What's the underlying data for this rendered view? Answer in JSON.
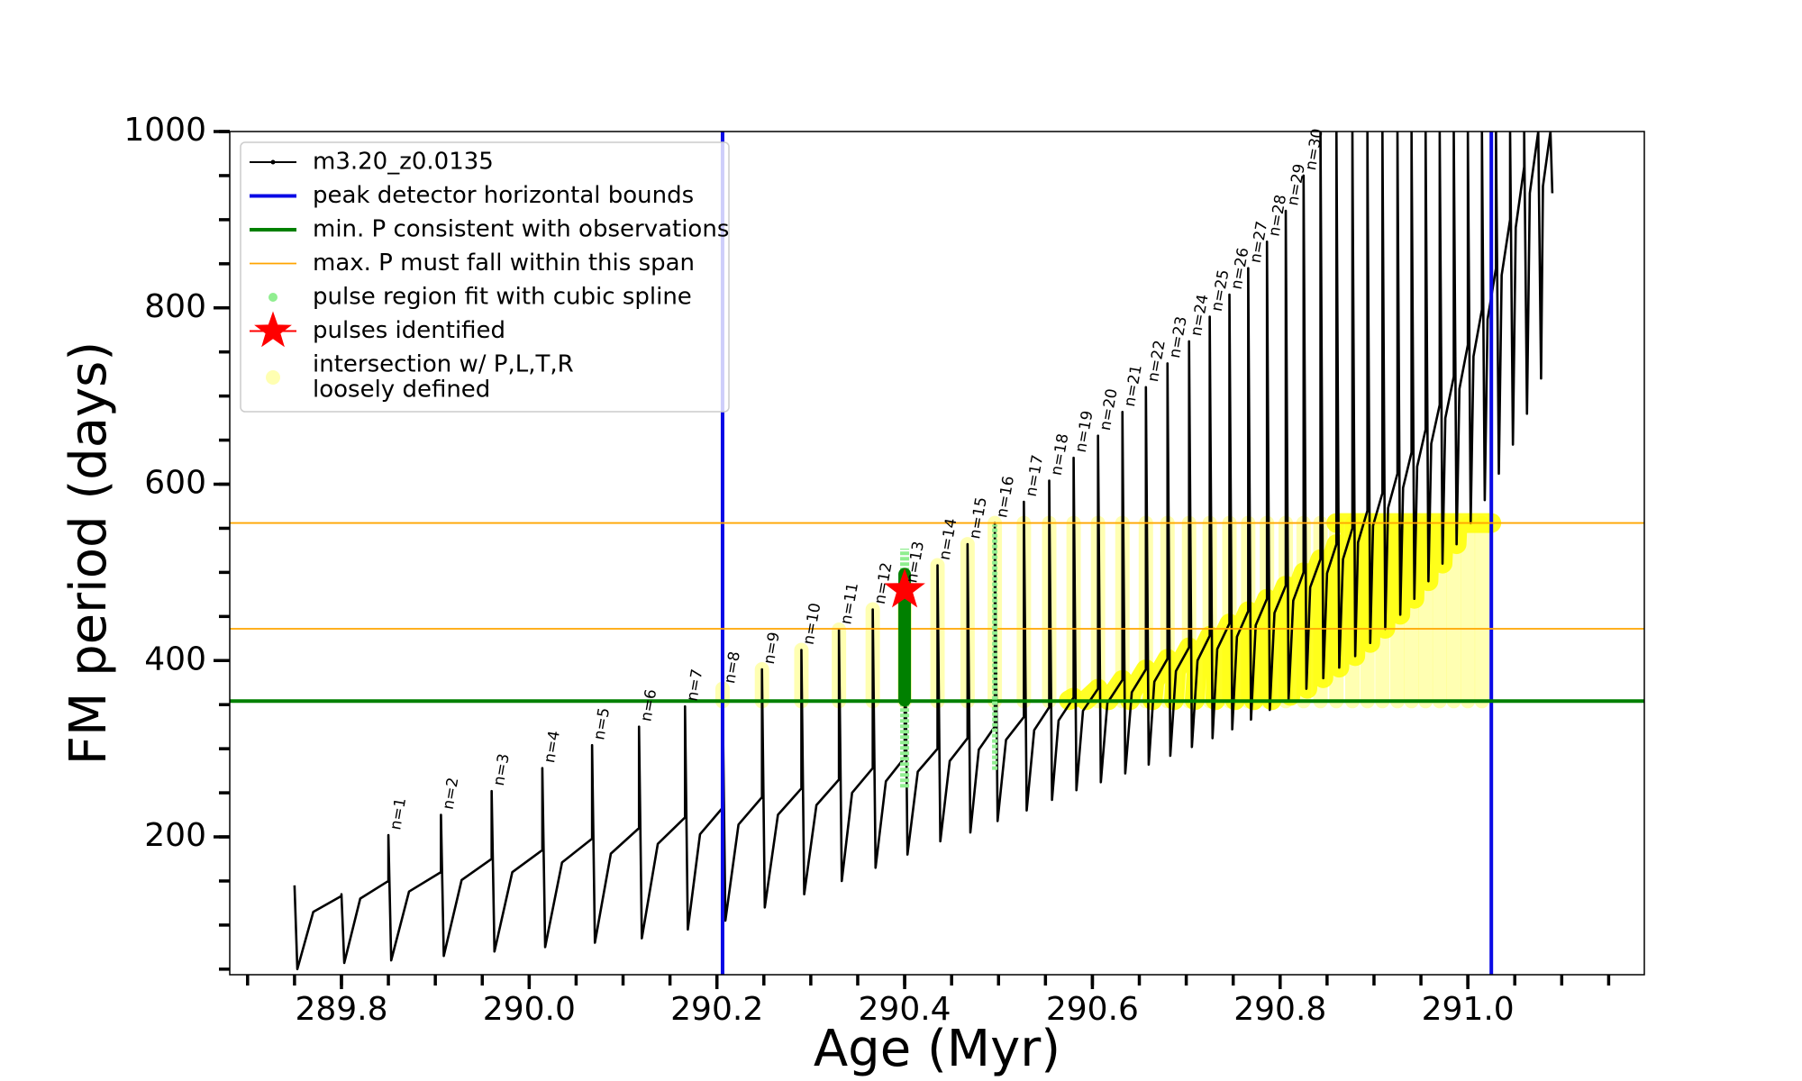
{
  "chart_data": {
    "type": "line",
    "xlabel": "Age (Myr)",
    "ylabel": "FM period (days)",
    "xlim": [
      289.681,
      291.188
    ],
    "ylim": [
      43.7,
      1000
    ],
    "xticks": [
      289.8,
      {
        "value": 290,
        "label": "290.0"
      },
      290.2,
      290.4,
      290.6,
      290.8,
      {
        "value": 291,
        "label": "291.0"
      }
    ],
    "xminor": [
      289.7,
      289.75,
      289.8,
      289.85,
      289.9,
      289.95,
      290,
      290.05,
      290.1,
      290.15,
      290.2,
      290.25,
      290.3,
      290.35,
      290.4,
      290.45,
      290.5,
      290.55,
      290.6,
      290.65,
      290.7,
      290.75,
      290.8,
      290.85,
      290.9,
      290.95,
      291,
      291.05,
      291.1,
      291.15
    ],
    "yticks": [
      200,
      400,
      600,
      800,
      1000
    ],
    "yminor": [
      50,
      100,
      150,
      200,
      250,
      300,
      350,
      400,
      450,
      500,
      550,
      600,
      650,
      700,
      750,
      800,
      850,
      900,
      950,
      1000
    ],
    "legend": "upper left",
    "series": [
      {
        "name": "m3.20_z0.0135",
        "kind": "line",
        "color": "#000000",
        "x": [
          289.75,
          289.753,
          289.77,
          289.8,
          289.8,
          289.803,
          289.82,
          289.85,
          289.85,
          289.853,
          289.872,
          289.906,
          289.906,
          289.909,
          289.928,
          289.96,
          289.96,
          289.963,
          289.982,
          290.014,
          290.014,
          290.017,
          290.035,
          290.067,
          290.067,
          290.07,
          290.087,
          290.117,
          290.117,
          290.12,
          290.137,
          290.166,
          290.166,
          290.169,
          290.182,
          290.206,
          290.206,
          290.209,
          290.223,
          290.248,
          290.248,
          290.251,
          290.265,
          290.29,
          290.29,
          290.293,
          290.306,
          290.33,
          290.33,
          290.333,
          290.344,
          290.366,
          290.366,
          290.369,
          290.38,
          290.4,
          290.4,
          290.403,
          290.414,
          290.435,
          290.435,
          290.438,
          290.448,
          290.467,
          290.467,
          290.47,
          290.479,
          290.496,
          290.496,
          290.499,
          290.508,
          290.527,
          290.527,
          290.53,
          290.538,
          290.554,
          290.554,
          290.557,
          290.564,
          290.58,
          290.58,
          290.583,
          290.59,
          290.606,
          290.606,
          290.609,
          290.616,
          290.632,
          290.632,
          290.635,
          290.642,
          290.657,
          290.657,
          290.66,
          290.666,
          290.68,
          290.68,
          290.683,
          290.689,
          290.703,
          290.703,
          290.706,
          290.712,
          290.725,
          290.725,
          290.728,
          290.733,
          290.746,
          290.746,
          290.749,
          290.754,
          290.766,
          290.766,
          290.769,
          290.774,
          290.786,
          290.786,
          290.789,
          290.794,
          290.806,
          290.806,
          290.809,
          290.814,
          290.825,
          290.825,
          290.828,
          290.832,
          290.843,
          290.843,
          290.846,
          290.85,
          290.86,
          290.86,
          290.863,
          290.867,
          290.877,
          290.877,
          290.88,
          290.883,
          290.893,
          290.893,
          290.896,
          290.899,
          290.909,
          290.909,
          290.912,
          290.915,
          290.925,
          290.925,
          290.928,
          290.931,
          290.94,
          290.94,
          290.943,
          290.946,
          290.955,
          290.955,
          290.958,
          290.961,
          290.97,
          290.97,
          290.973,
          290.976,
          290.985,
          290.985,
          290.988,
          290.991,
          291.0,
          291.0,
          291.003,
          291.006,
          291.015,
          291.015,
          291.018,
          291.021,
          291.03,
          291.03,
          291.033,
          291.036,
          291.045,
          291.045,
          291.048,
          291.051,
          291.06,
          291.06,
          291.063,
          291.066,
          291.075,
          291.075,
          291.078,
          291.08,
          291.088,
          291.088,
          291.09
        ],
        "values": [
          145,
          50,
          115,
          133,
          135,
          57,
          130,
          150,
          202,
          60,
          138,
          160,
          225,
          65,
          151,
          175,
          252,
          70,
          160,
          185,
          278,
          75,
          171,
          198,
          304,
          80,
          181,
          210,
          325,
          85,
          192,
          222,
          348,
          95,
          203,
          233,
          368,
          105,
          214,
          245,
          390,
          120,
          225,
          255,
          412,
          135,
          236,
          265,
          435,
          150,
          250,
          278,
          458,
          165,
          263,
          290,
          482,
          180,
          274,
          300,
          508,
          195,
          286,
          312,
          532,
          205,
          299,
          325,
          556,
          218,
          310,
          336,
          580,
          230,
          321,
          347,
          604,
          242,
          332,
          358,
          630,
          253,
          343,
          368,
          655,
          262,
          352,
          378,
          682,
          272,
          364,
          390,
          710,
          282,
          376,
          402,
          737,
          292,
          388,
          415,
          762,
          302,
          400,
          428,
          790,
          312,
          413,
          442,
          815,
          322,
          427,
          456,
          845,
          333,
          440,
          470,
          875,
          344,
          454,
          485,
          910,
          356,
          468,
          500,
          950,
          368,
          483,
          515,
          1000,
          380,
          499,
          532,
          1000,
          392,
          515,
          550,
          1000,
          405,
          534,
          570,
          1000,
          420,
          553,
          590,
          1000,
          436,
          573,
          612,
          1000,
          452,
          596,
          636,
          1000,
          470,
          620,
          662,
          1000,
          490,
          646,
          690,
          1000,
          510,
          675,
          722,
          1000,
          532,
          708,
          758,
          1000,
          556,
          745,
          798,
          1000,
          582,
          787,
          845,
          1000,
          612,
          837,
          900,
          1000,
          645,
          891,
          960,
          1000,
          680,
          930,
          1000,
          1000,
          720,
          938,
          1000,
          1000,
          930
        ]
      },
      {
        "name": "peak detector horizontal bounds",
        "kind": "vline",
        "color": "#0a0ae6",
        "x": [
          290.206,
          291.025
        ]
      },
      {
        "name": "min. P consistent with observations",
        "kind": "hline",
        "color": "#008000",
        "values": [
          354
        ]
      },
      {
        "name": "max. P must fall within this span",
        "kind": "hline",
        "color": "#ffa500",
        "values": [
          436,
          556
        ]
      },
      {
        "name": "pulse region fit with cubic spline",
        "kind": "range",
        "color": "#90ee90",
        "x": [
          290.4,
          290.496
        ],
        "low": [
          256,
          276
        ],
        "high": [
          527,
          554
        ],
        "core": {
          "color": "#008000",
          "x": [
            290.4
          ],
          "low": [
            355
          ],
          "high": [
            498
          ]
        }
      },
      {
        "name": "pulses identified",
        "kind": "star",
        "color": "#ff0000",
        "x": [
          290.4
        ],
        "values": [
          480
        ]
      },
      {
        "name": [
          "intersection w/ P,L,T,R",
          "loosely defined"
        ],
        "kind": "band",
        "color": "#ffff00",
        "x": [
          290.575,
          290.58,
          null,
          290.593,
          290.606,
          null,
          290.617,
          290.632,
          null,
          290.64,
          290.642,
          290.657,
          null,
          290.664,
          290.666,
          290.68,
          null,
          290.687,
          290.689,
          290.703,
          null,
          290.709,
          290.712,
          290.725,
          null,
          290.731,
          290.733,
          290.746,
          null,
          290.752,
          290.754,
          290.766,
          null,
          290.772,
          290.774,
          290.786,
          null,
          290.791,
          290.794,
          290.806,
          null,
          290.811,
          290.814,
          290.825,
          null,
          290.829,
          290.832,
          290.843,
          null,
          290.846,
          290.85,
          290.86,
          null,
          290.863,
          290.867,
          290.877,
          null,
          290.88,
          290.883,
          290.89,
          null,
          290.896,
          290.899,
          290.9,
          null,
          290.912,
          290.915,
          null,
          290.928,
          290.93,
          null,
          290.943,
          290.945,
          null,
          290.958,
          290.96,
          null,
          290.973,
          290.975,
          null,
          290.988,
          290.989,
          null,
          291.003,
          null,
          290.86,
          291.025
        ],
        "values": [
          355,
          358,
          null,
          355,
          368,
          null,
          355,
          378,
          null,
          355,
          364,
          390,
          null,
          355,
          376,
          402,
          null,
          355,
          388,
          415,
          null,
          355,
          400,
          428,
          null,
          355,
          413,
          442,
          null,
          355,
          427,
          456,
          null,
          355,
          440,
          470,
          null,
          355,
          454,
          485,
          null,
          360,
          468,
          500,
          null,
          368,
          483,
          515,
          null,
          380,
          499,
          532,
          null,
          392,
          515,
          550,
          null,
          405,
          534,
          556,
          null,
          420,
          553,
          556,
          null,
          436,
          556,
          null,
          452,
          556,
          null,
          470,
          556,
          null,
          490,
          556,
          null,
          510,
          556,
          null,
          532,
          556,
          null,
          556,
          null,
          556,
          556
        ],
        "pillars": {
          "low": 354,
          "x": [
            290.206,
            290.248,
            290.29,
            290.33,
            290.366,
            290.4,
            290.435,
            290.467,
            290.496,
            290.527,
            290.554,
            290.58,
            290.606,
            290.632,
            290.657,
            290.68,
            290.703,
            290.725,
            290.746,
            290.766,
            290.786,
            290.806,
            290.825,
            290.843,
            290.86,
            290.877,
            290.893,
            290.909,
            290.925,
            290.94,
            290.955,
            290.97,
            290.985,
            291.0,
            291.015
          ],
          "high": [
            368,
            390,
            412,
            435,
            458,
            482,
            508,
            532,
            556,
            556,
            556,
            556,
            556,
            556,
            556,
            556,
            556,
            556,
            556,
            556,
            556,
            556,
            556,
            556,
            556,
            556,
            556,
            556,
            556,
            556,
            556,
            556,
            556,
            556,
            556
          ]
        }
      }
    ],
    "annotations": [
      {
        "text": "n=1",
        "x": 289.85,
        "y": 202
      },
      {
        "text": "n=2",
        "x": 289.906,
        "y": 225
      },
      {
        "text": "n=3",
        "x": 289.96,
        "y": 252
      },
      {
        "text": "n=4",
        "x": 290.014,
        "y": 278
      },
      {
        "text": "n=5",
        "x": 290.067,
        "y": 304
      },
      {
        "text": "n=6",
        "x": 290.117,
        "y": 325
      },
      {
        "text": "n=7",
        "x": 290.166,
        "y": 348
      },
      {
        "text": "n=8",
        "x": 290.206,
        "y": 368
      },
      {
        "text": "n=9",
        "x": 290.248,
        "y": 390
      },
      {
        "text": "n=10",
        "x": 290.29,
        "y": 412
      },
      {
        "text": "n=11",
        "x": 290.33,
        "y": 435
      },
      {
        "text": "n=12",
        "x": 290.366,
        "y": 458
      },
      {
        "text": "n=13",
        "x": 290.4,
        "y": 482
      },
      {
        "text": "n=14",
        "x": 290.435,
        "y": 508
      },
      {
        "text": "n=15",
        "x": 290.467,
        "y": 532
      },
      {
        "text": "n=16",
        "x": 290.496,
        "y": 556
      },
      {
        "text": "n=17",
        "x": 290.527,
        "y": 580
      },
      {
        "text": "n=18",
        "x": 290.554,
        "y": 604
      },
      {
        "text": "n=19",
        "x": 290.58,
        "y": 630
      },
      {
        "text": "n=20",
        "x": 290.606,
        "y": 655
      },
      {
        "text": "n=21",
        "x": 290.632,
        "y": 682
      },
      {
        "text": "n=22",
        "x": 290.657,
        "y": 710
      },
      {
        "text": "n=23",
        "x": 290.68,
        "y": 737
      },
      {
        "text": "n=24",
        "x": 290.703,
        "y": 762
      },
      {
        "text": "n=25",
        "x": 290.725,
        "y": 790
      },
      {
        "text": "n=26",
        "x": 290.746,
        "y": 815
      },
      {
        "text": "n=27",
        "x": 290.766,
        "y": 845
      },
      {
        "text": "n=28",
        "x": 290.786,
        "y": 875
      },
      {
        "text": "n=29",
        "x": 290.806,
        "y": 910
      },
      {
        "text": "n=30",
        "x": 290.825,
        "y": 950
      }
    ]
  }
}
